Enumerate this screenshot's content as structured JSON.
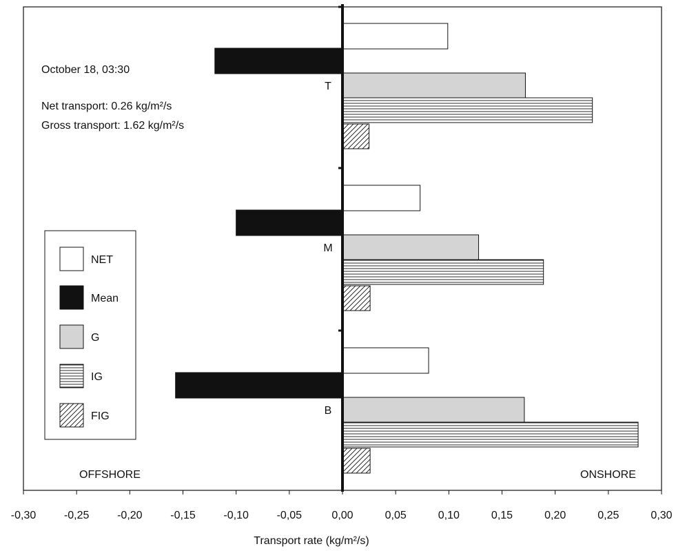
{
  "chart_data": {
    "type": "bar",
    "orientation": "horizontal",
    "xlabel": "Transport rate (kg/m²/s)",
    "xlim": [
      -0.3,
      0.3
    ],
    "xticks": [
      "-0,30",
      "-0,25",
      "-0,20",
      "-0,15",
      "-0,10",
      "-0,05",
      "0,00",
      "0,05",
      "0,10",
      "0,15",
      "0,20",
      "0,25",
      "0,30"
    ],
    "grid": false,
    "legend_position": "left",
    "categories": [
      "T",
      "M",
      "B"
    ],
    "series": [
      {
        "name": "NET",
        "pattern": "white",
        "values": [
          0.099,
          0.073,
          0.081
        ]
      },
      {
        "name": "Mean",
        "pattern": "black",
        "values": [
          -0.12,
          -0.1,
          -0.157
        ]
      },
      {
        "name": "G",
        "pattern": "gray",
        "values": [
          0.172,
          0.128,
          0.171
        ]
      },
      {
        "name": "IG",
        "pattern": "horizontal",
        "values": [
          0.235,
          0.189,
          0.278
        ]
      },
      {
        "name": "FIG",
        "pattern": "diagonal",
        "values": [
          0.025,
          0.026,
          0.026
        ]
      }
    ],
    "annotations": {
      "date": "October 18, 03:30",
      "net_transport": "Net transport: 0.26 kg/m²/s",
      "gross_transport": "Gross transport: 1.62 kg/m²/s",
      "offshore": "OFFSHORE",
      "onshore": "ONSHORE"
    }
  }
}
